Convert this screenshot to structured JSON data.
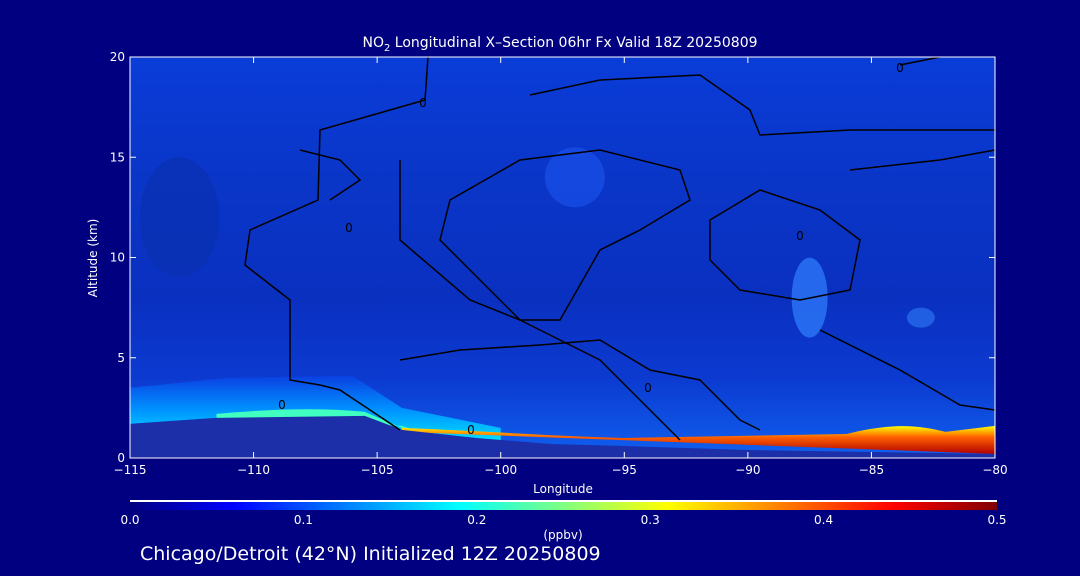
{
  "chart_data": {
    "type": "contour",
    "title_main": "NO",
    "title_sub": "2",
    "title_rest": " Longitudinal X–Section 06hr  Fx Valid 18Z 20250809",
    "xlabel": "Longitude",
    "ylabel": "Altitude (km)",
    "xlim": [
      -115,
      -80
    ],
    "ylim": [
      0,
      20
    ],
    "xticks": [
      -115,
      -110,
      -105,
      -100,
      -95,
      -90,
      -85,
      -80
    ],
    "xtick_labels": [
      "−115",
      "−110",
      "−105",
      "−100",
      "−95",
      "−90",
      "−85",
      "−80"
    ],
    "yticks": [
      0,
      5,
      10,
      15,
      20
    ],
    "colorbar": {
      "min": 0.0,
      "max": 0.5,
      "tick_labels": [
        "0.0",
        "0.1",
        "0.2",
        "0.3",
        "0.4",
        "0.5"
      ],
      "unit": "(ppbv)",
      "colormap": "jet"
    },
    "contour_label": "0",
    "surface_layer": {
      "lon": [
        -115,
        -111.5,
        -105.5,
        -104,
        -101,
        -98,
        -95,
        -90,
        -86,
        -84,
        -82.5,
        -80
      ],
      "max_ppbv": [
        0.12,
        0.18,
        0.2,
        0.3,
        0.3,
        0.45,
        0.48,
        0.45,
        0.42,
        0.5,
        0.35,
        0.2
      ]
    },
    "terrain_km": {
      "lon": [
        -115,
        -111.5,
        -105.5,
        -104,
        -101,
        -98,
        -95,
        -90,
        -85,
        -80
      ],
      "alt": [
        1.7,
        2.0,
        2.1,
        1.4,
        1.0,
        0.7,
        0.6,
        0.4,
        0.3,
        0.2
      ]
    }
  },
  "footer": "Chicago/Detroit (42°N) Initialized 12Z 20250809",
  "colors": {
    "background": "#000080",
    "terrain": "#1c2ea8"
  }
}
